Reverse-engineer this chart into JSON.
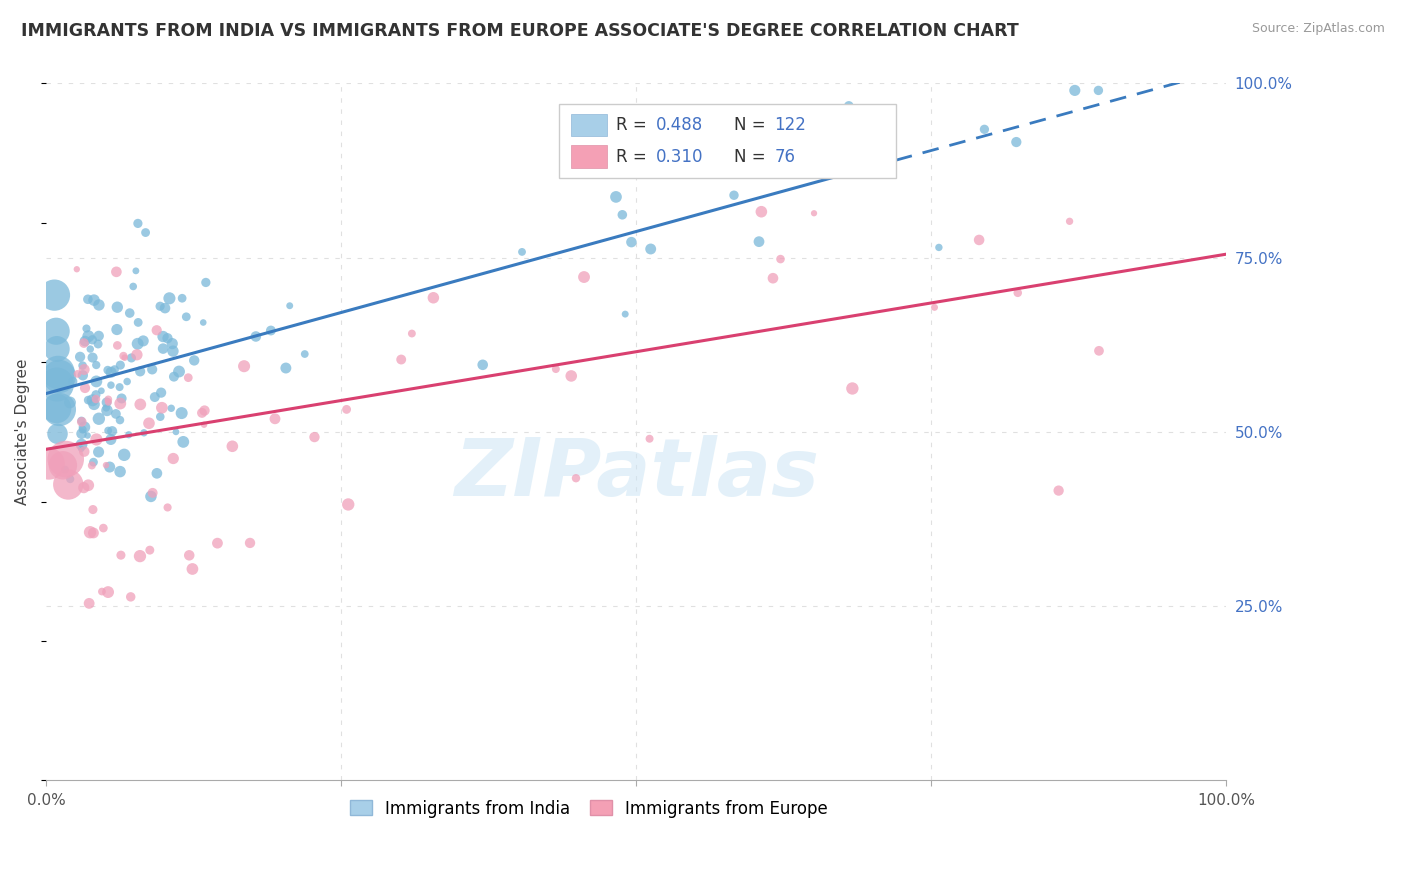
{
  "title": "IMMIGRANTS FROM INDIA VS IMMIGRANTS FROM EUROPE ASSOCIATE'S DEGREE CORRELATION CHART",
  "source": "Source: ZipAtlas.com",
  "ylabel": "Associate's Degree",
  "xlim": [
    0,
    1.0
  ],
  "ylim": [
    0,
    1.0
  ],
  "blue_R": 0.488,
  "blue_N": 122,
  "pink_R": 0.31,
  "pink_N": 76,
  "blue_color": "#7ab8d9",
  "pink_color": "#f0a0ba",
  "blue_line_color": "#3a7bbf",
  "pink_line_color": "#d94070",
  "blue_line_start_y": 0.555,
  "blue_line_end_y": 1.02,
  "pink_line_start_y": 0.475,
  "pink_line_end_y": 0.755,
  "watermark_text": "ZIPatlas",
  "title_fontsize": 12.5,
  "legend_fontsize": 12,
  "axis_label_fontsize": 11,
  "tick_fontsize": 11,
  "right_tick_color": "#4472c4",
  "background_color": "#ffffff",
  "grid_color": "#e0e0e0",
  "grid_style": "dotted"
}
